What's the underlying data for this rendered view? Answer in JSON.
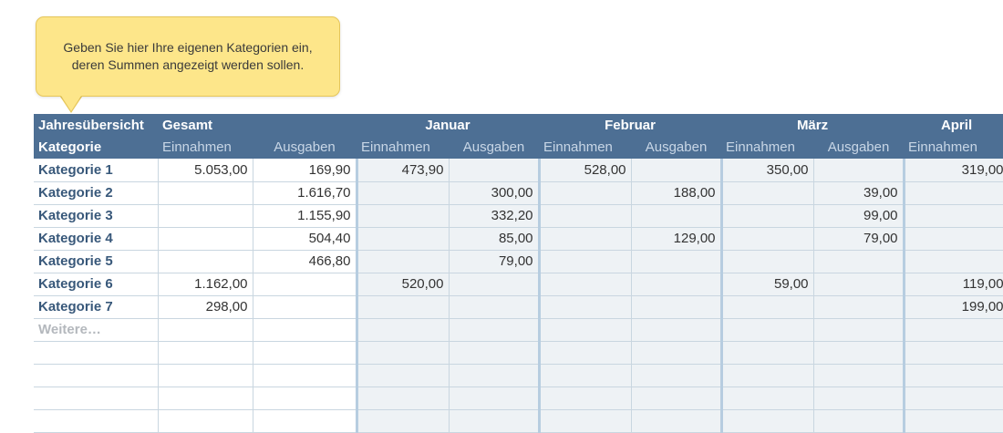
{
  "callout": {
    "line1": "Geben Sie hier Ihre eigenen Kategorien ein,",
    "line2": "deren Summen angezeigt werden sollen."
  },
  "header": {
    "title": "Jahresübersicht",
    "gesamt": "Gesamt",
    "months": [
      "Januar",
      "Februar",
      "März",
      "April"
    ],
    "category_label": "Kategorie",
    "income_label": "Einnahmen",
    "expense_label": "Ausgaben"
  },
  "rows": [
    {
      "name": "Kategorie 1",
      "cells": [
        "5.053,00",
        "169,90",
        "473,90",
        "",
        "528,00",
        "",
        "350,00",
        "",
        "319,00"
      ]
    },
    {
      "name": "Kategorie 2",
      "cells": [
        "",
        "1.616,70",
        "",
        "300,00",
        "",
        "188,00",
        "",
        "39,00",
        ""
      ]
    },
    {
      "name": "Kategorie 3",
      "cells": [
        "",
        "1.155,90",
        "",
        "332,20",
        "",
        "",
        "",
        "99,00",
        ""
      ]
    },
    {
      "name": "Kategorie 4",
      "cells": [
        "",
        "504,40",
        "",
        "85,00",
        "",
        "129,00",
        "",
        "79,00",
        ""
      ]
    },
    {
      "name": "Kategorie 5",
      "cells": [
        "",
        "466,80",
        "",
        "79,00",
        "",
        "",
        "",
        "",
        ""
      ]
    },
    {
      "name": "Kategorie 6",
      "cells": [
        "1.162,00",
        "",
        "520,00",
        "",
        "",
        "",
        "59,00",
        "",
        "119,00"
      ]
    },
    {
      "name": "Kategorie 7",
      "cells": [
        "298,00",
        "",
        "",
        "",
        "",
        "",
        "",
        "",
        "199,00"
      ]
    },
    {
      "name": "Weitere…",
      "cells": [
        "",
        "",
        "",
        "",
        "",
        "",
        "",
        "",
        ""
      ]
    },
    {
      "name": "",
      "cells": [
        "",
        "",
        "",
        "",
        "",
        "",
        "",
        "",
        ""
      ]
    },
    {
      "name": "",
      "cells": [
        "",
        "",
        "",
        "",
        "",
        "",
        "",
        "",
        ""
      ]
    },
    {
      "name": "",
      "cells": [
        "",
        "",
        "",
        "",
        "",
        "",
        "",
        "",
        ""
      ]
    },
    {
      "name": "",
      "cells": [
        "",
        "",
        "",
        "",
        "",
        "",
        "",
        "",
        ""
      ]
    }
  ]
}
